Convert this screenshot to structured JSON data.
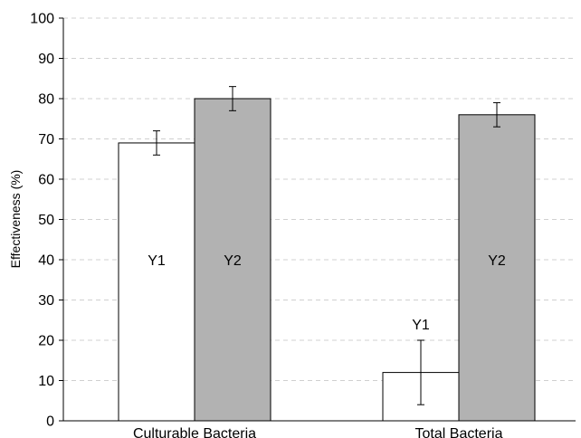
{
  "chart_data": {
    "type": "bar",
    "ylabel": "Effectiveness (%)",
    "ylim": [
      0,
      100
    ],
    "yticks": [
      0,
      10,
      20,
      30,
      40,
      50,
      60,
      70,
      80,
      90,
      100
    ],
    "grid": "horizontal dashed",
    "categories": [
      "Culturable Bacteria",
      "Total Bacteria"
    ],
    "series": [
      {
        "name": "Y1",
        "color": "#ffffff",
        "values": [
          69,
          12
        ],
        "errors": [
          3,
          8
        ]
      },
      {
        "name": "Y2",
        "color": "#b2b2b2",
        "values": [
          80,
          76
        ],
        "errors": [
          3,
          3
        ]
      }
    ],
    "bar_labels": [
      {
        "series": 0,
        "category": 0,
        "text": "Y1",
        "y": 40
      },
      {
        "series": 1,
        "category": 0,
        "text": "Y2",
        "y": 40
      },
      {
        "series": 0,
        "category": 1,
        "text": "Y1",
        "y": 24
      },
      {
        "series": 1,
        "category": 1,
        "text": "Y2",
        "y": 40
      }
    ]
  }
}
